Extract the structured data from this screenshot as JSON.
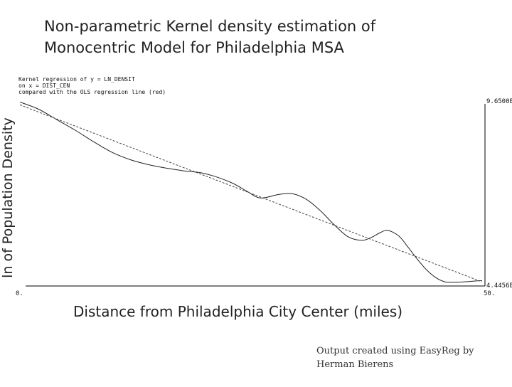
{
  "header": {
    "title_line1": "Non-parametric Kernel density estimation of",
    "title_line2": "Monocentric Model for Philadelphia MSA"
  },
  "labels": {
    "ylabel": "ln of Population Density",
    "xlabel": "Distance from Philadelphia City Center (miles)"
  },
  "footer": {
    "credit_line1": "Output created using EasyReg by",
    "credit_line2": "Herman Bierens"
  },
  "plot_legend": {
    "line1": "Kernel regression of y = LN_DENSIT",
    "line2": "on x = DIST_CEN",
    "line3": "compared with the OLS regression line (red)"
  },
  "colors": {
    "kernel_line": "#222222",
    "ols_line": "#444444",
    "axis": "#000000"
  },
  "chart_data": {
    "type": "line",
    "title": "Non-parametric Kernel density estimation of Monocentric Model for Philadelphia MSA",
    "xlabel": "Distance from Philadelphia City Center (miles)",
    "ylabel": "ln of Population Density",
    "xlim": [
      0,
      50
    ],
    "ylim": [
      4.4456,
      9.65
    ],
    "x_tick_labels": [
      "0.",
      "50."
    ],
    "y_tick_labels": [
      "9.6500E",
      "4.4456E"
    ],
    "grid": false,
    "legend": "top-left",
    "series": [
      {
        "name": "Kernel regression",
        "style": "solid",
        "x": [
          0,
          2,
          4,
          6,
          8,
          10,
          12,
          14,
          16,
          18,
          19.5,
          21,
          23,
          24.5,
          26,
          28,
          29.5,
          31,
          32.5,
          34,
          35.5,
          37,
          38,
          39,
          39.8,
          41,
          42,
          43,
          44,
          45,
          46,
          47,
          48,
          49,
          50
        ],
        "y": [
          9.58,
          9.38,
          9.08,
          8.78,
          8.45,
          8.15,
          7.94,
          7.8,
          7.7,
          7.62,
          7.58,
          7.48,
          7.28,
          7.06,
          6.86,
          6.96,
          6.98,
          6.82,
          6.5,
          6.1,
          5.76,
          5.66,
          5.74,
          5.88,
          5.94,
          5.78,
          5.46,
          5.12,
          4.82,
          4.6,
          4.48,
          4.47,
          4.48,
          4.5,
          4.52
        ]
      },
      {
        "name": "OLS regression line",
        "style": "dashed",
        "x": [
          0,
          50
        ],
        "y": [
          9.5,
          4.48
        ]
      }
    ]
  }
}
